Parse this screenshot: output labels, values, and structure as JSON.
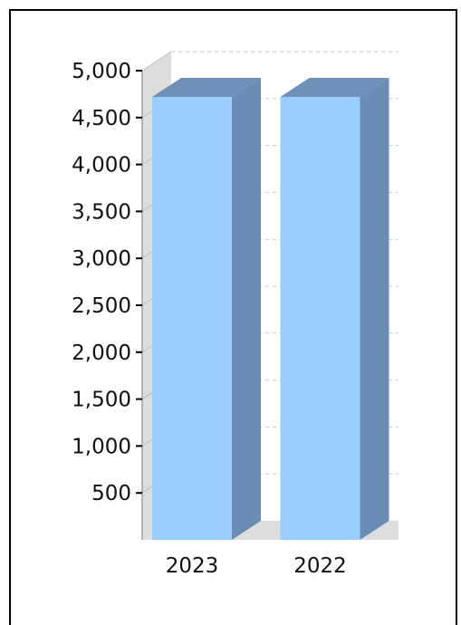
{
  "chart_data": {
    "type": "bar",
    "style": "3d-column",
    "categories": [
      "2023",
      "2022"
    ],
    "values": [
      4720,
      4720
    ],
    "yticks": [
      "500",
      "1,000",
      "1,500",
      "2,000",
      "2,500",
      "3,000",
      "3,500",
      "4,000",
      "4,500",
      "5,000"
    ],
    "ylim": [
      0,
      5000
    ],
    "grid": true,
    "legend": "none",
    "colors": {
      "bar_front": "#99ccff",
      "bar_side": "#6b8db5",
      "bar_top": "#6f90b8",
      "wall": "#dddddd",
      "gridline": "#c8c8c8"
    }
  }
}
